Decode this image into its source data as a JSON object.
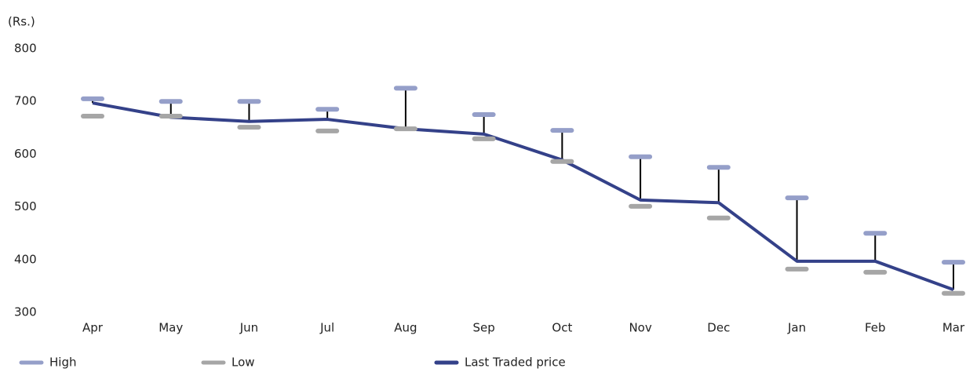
{
  "chart_data": {
    "type": "hlc",
    "y_label": "(Rs.)",
    "categories": [
      "Apr",
      "May",
      "Jun",
      "Jul",
      "Aug",
      "Sep",
      "Oct",
      "Nov",
      "Dec",
      "Jan",
      "Feb",
      "Mar"
    ],
    "series": [
      {
        "name": "High",
        "color": "#959fc9",
        "values": [
          705,
          700,
          700,
          685,
          725,
          675,
          645,
          595,
          575,
          517,
          450,
          395
        ]
      },
      {
        "name": "Low",
        "color": "#a6a6a6",
        "values": [
          672,
          672,
          651,
          644,
          648,
          629,
          586,
          501,
          479,
          382,
          376,
          336
        ]
      },
      {
        "name": "Last Traded price",
        "color": "#344189",
        "values": [
          697,
          670,
          662,
          666,
          648,
          638,
          589,
          513,
          508,
          397,
          397,
          343
        ]
      }
    ],
    "ylim": [
      300,
      800
    ],
    "yticks": [
      300,
      400,
      500,
      600,
      700,
      800
    ],
    "grid": false
  }
}
